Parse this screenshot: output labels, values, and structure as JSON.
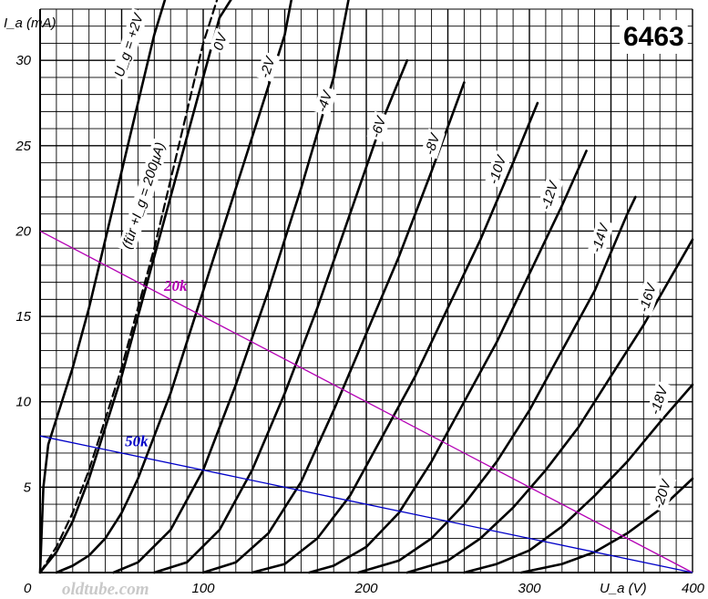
{
  "chart_data": {
    "type": "line",
    "title": "6463",
    "xlabel": "U_a (V)",
    "ylabel": "I_a (mA)",
    "xlim": [
      0,
      400
    ],
    "ylim": [
      0,
      33
    ],
    "x_ticks": [
      "0",
      "100",
      "200",
      "300",
      "400"
    ],
    "y_ticks": [
      "5",
      "10",
      "15",
      "20",
      "25",
      "30"
    ],
    "grid": true,
    "watermark": "oldtube.com",
    "series": [
      {
        "name": "U_g = +2V",
        "style": "solid",
        "label_at": [
          57,
          30.8
        ],
        "x": [
          0,
          2,
          5,
          10,
          20,
          30,
          40,
          50,
          60,
          70,
          78
        ],
        "y": [
          0,
          5,
          7.5,
          9,
          12,
          15.5,
          19.5,
          23.5,
          27.5,
          31.5,
          34
        ]
      },
      {
        "name": "(für +I_g = 200µA)",
        "style": "dashed",
        "label_at": [
          66,
          22
        ],
        "x": [
          0,
          10,
          20,
          30,
          40,
          50,
          60,
          70,
          80,
          90,
          100,
          110
        ],
        "y": [
          0,
          1.5,
          3.5,
          6,
          9,
          12,
          15.5,
          19,
          23,
          27,
          31,
          34
        ]
      },
      {
        "name": "0V",
        "style": "solid",
        "label_at": [
          113,
          31
        ],
        "x": [
          0,
          10,
          20,
          30,
          40,
          50,
          60,
          70,
          80,
          90,
          100,
          110,
          120
        ],
        "y": [
          0,
          1.2,
          3,
          5.5,
          8.5,
          11.5,
          15,
          18.5,
          22,
          25.5,
          29,
          32.5,
          34
        ]
      },
      {
        "name": "-2V",
        "style": "solid",
        "label_at": [
          142,
          29.5
        ],
        "x": [
          10,
          20,
          30,
          40,
          50,
          60,
          70,
          80,
          90,
          100,
          110,
          120,
          130,
          140,
          150,
          155
        ],
        "y": [
          0,
          0.4,
          1,
          2,
          3.5,
          5.5,
          8,
          10.5,
          13.5,
          16.5,
          19.5,
          22.5,
          25.5,
          28.5,
          31.5,
          34
        ]
      },
      {
        "name": "-4V",
        "style": "solid",
        "label_at": [
          177,
          27.5
        ],
        "x": [
          45,
          60,
          80,
          100,
          120,
          140,
          160,
          180,
          190
        ],
        "y": [
          0,
          0.6,
          2.5,
          6,
          11,
          16.5,
          22.5,
          29,
          34
        ]
      },
      {
        "name": "-6V",
        "style": "solid",
        "label_at": [
          210,
          26
        ],
        "x": [
          70,
          90,
          110,
          130,
          150,
          170,
          190,
          210,
          225
        ],
        "y": [
          0,
          0.6,
          2.5,
          6,
          10.5,
          15.5,
          21,
          26.5,
          30
        ]
      },
      {
        "name": "-8V",
        "style": "solid",
        "label_at": [
          243,
          25
        ],
        "x": [
          100,
          120,
          140,
          160,
          180,
          200,
          220,
          240,
          260
        ],
        "y": [
          0,
          0.6,
          2.3,
          5.3,
          9.5,
          14,
          18.5,
          23.5,
          28.7
        ]
      },
      {
        "name": "-10V",
        "style": "solid",
        "label_at": [
          283,
          23.5
        ],
        "x": [
          130,
          150,
          170,
          190,
          210,
          230,
          250,
          270,
          290,
          305
        ],
        "y": [
          0,
          0.5,
          2,
          4.5,
          8,
          11.5,
          15.5,
          19.5,
          24,
          27.5
        ]
      },
      {
        "name": "-12V",
        "style": "solid",
        "label_at": [
          315,
          22
        ],
        "x": [
          165,
          180,
          200,
          220,
          240,
          260,
          280,
          300,
          320,
          335
        ],
        "y": [
          0,
          0.4,
          1.5,
          3.5,
          6.5,
          10,
          13.5,
          17.5,
          21.5,
          24.7
        ]
      },
      {
        "name": "-14V",
        "style": "solid",
        "label_at": [
          346,
          19.5
        ],
        "x": [
          195,
          220,
          240,
          260,
          280,
          300,
          320,
          340,
          360,
          365
        ],
        "y": [
          0,
          0.7,
          2,
          4,
          6.5,
          9.5,
          13,
          16.5,
          21,
          22
        ]
      },
      {
        "name": "-16V",
        "style": "solid",
        "label_at": [
          375,
          16
        ],
        "x": [
          225,
          250,
          270,
          290,
          310,
          330,
          350,
          370,
          385,
          400
        ],
        "y": [
          0,
          0.7,
          2,
          3.8,
          6,
          8.5,
          11.5,
          14.5,
          17,
          19.5
        ]
      },
      {
        "name": "-18V",
        "style": "solid",
        "label_at": [
          382,
          10
        ],
        "x": [
          260,
          280,
          300,
          320,
          340,
          360,
          380,
          400
        ],
        "y": [
          0,
          0.5,
          1.3,
          2.7,
          4.5,
          6.5,
          8.8,
          11
        ]
      },
      {
        "name": "-20V",
        "style": "solid",
        "label_at": [
          384,
          4.5
        ],
        "x": [
          295,
          320,
          340,
          360,
          380,
          400
        ],
        "y": [
          0,
          0.5,
          1.2,
          2.3,
          3.7,
          5.5
        ]
      }
    ],
    "load_lines": [
      {
        "name": "20k",
        "color": "#b400b4",
        "x": [
          0,
          400
        ],
        "y": [
          20,
          0
        ],
        "label_at": [
          76,
          16.5
        ]
      },
      {
        "name": "50k",
        "color": "#0000c8",
        "x": [
          0,
          400
        ],
        "y": [
          8,
          0
        ],
        "label_at": [
          52,
          7.4
        ]
      }
    ]
  }
}
